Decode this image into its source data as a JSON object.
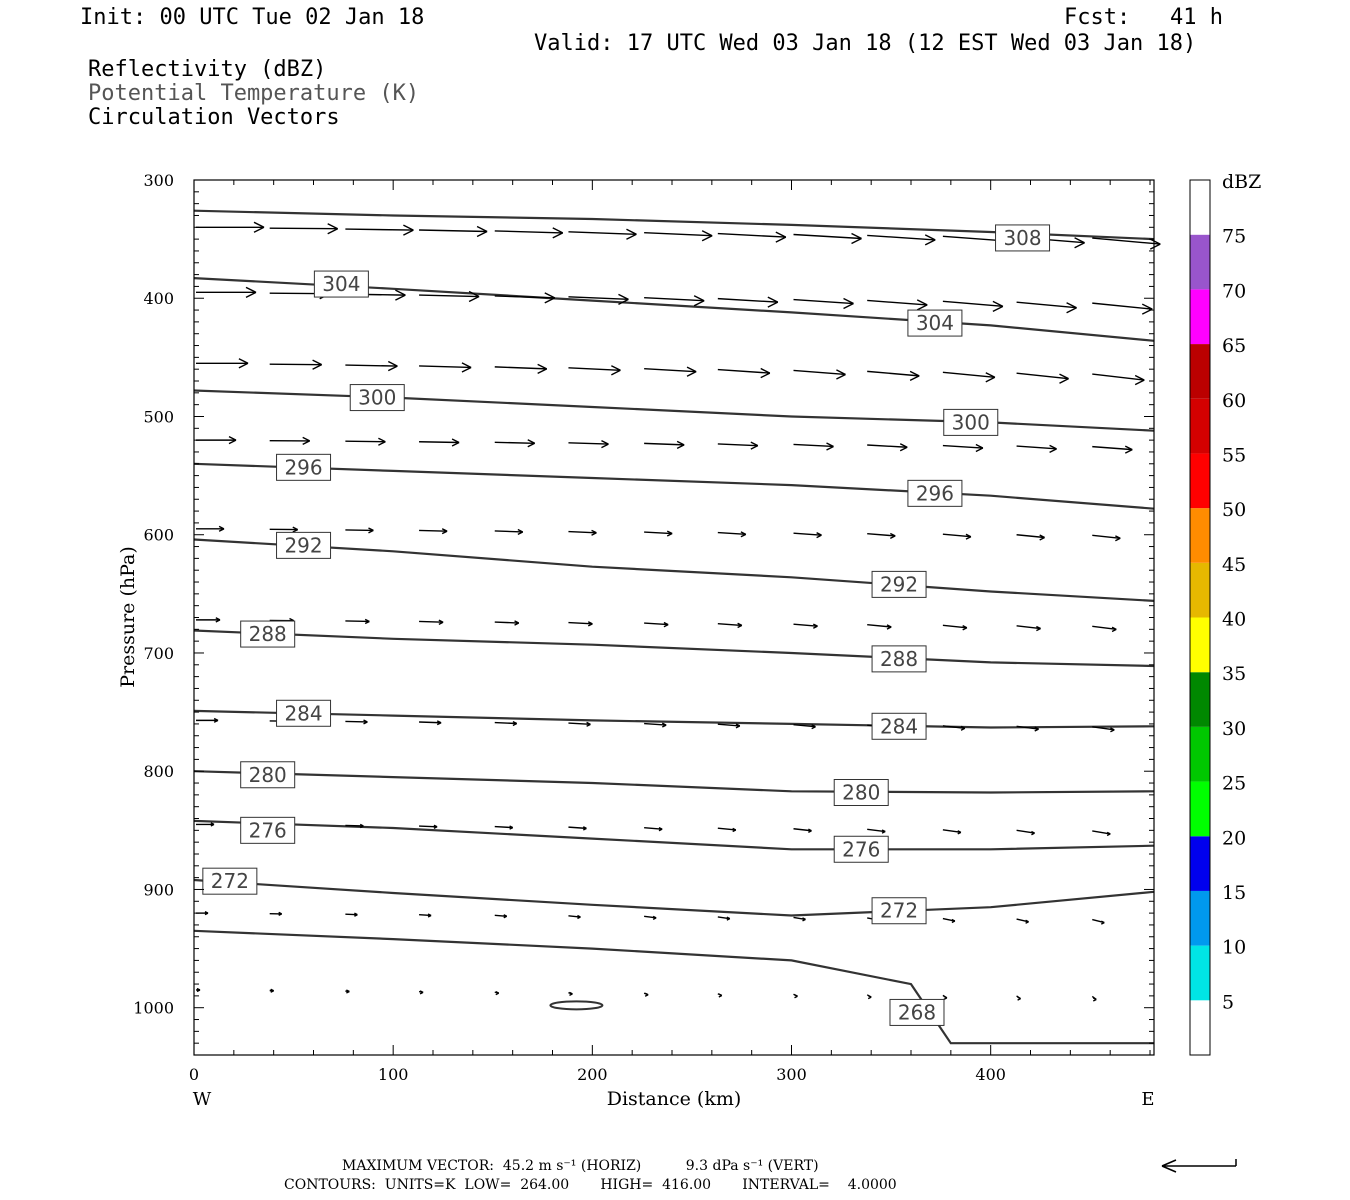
{
  "header": {
    "init": "Init: 00 UTC Tue 02 Jan 18",
    "fcst": "Fcst:   41 h",
    "valid": "Valid: 17 UTC Wed 03 Jan 18 (12 EST Wed 03 Jan 18)",
    "field1": "Reflectivity (dBZ)",
    "field2": "Potential Temperature (K)",
    "field3": "Circulation Vectors"
  },
  "footer": {
    "line1": "MAXIMUM VECTOR:  45.2 m s⁻¹ (HORIZ)          9.3 dPa s⁻¹ (VERT)",
    "line2": "CONTOURS:  UNITS=K  LOW=  264.00       HIGH=  416.00       INTERVAL=    4.0000"
  },
  "colors": {
    "contour": "#333333",
    "axis": "#000000"
  },
  "chart_data": {
    "type": "cross-section",
    "xlabel": "Distance (km)",
    "ylabel": "Pressure (hPa)",
    "xlim": [
      0,
      482
    ],
    "ylim": [
      300,
      1040
    ],
    "x_ticks": [
      "0",
      "100",
      "200",
      "300",
      "400"
    ],
    "x_tick_values": [
      0,
      100,
      200,
      300,
      400
    ],
    "y_ticks": [
      "300",
      "400",
      "500",
      "600",
      "700",
      "800",
      "900",
      "1000"
    ],
    "y_tick_values": [
      300,
      400,
      500,
      600,
      700,
      800,
      900,
      1000
    ],
    "left_end_label": "W",
    "right_end_label": "E",
    "colorbar": {
      "title": "dBZ",
      "labels": [
        "5",
        "10",
        "15",
        "20",
        "25",
        "30",
        "35",
        "40",
        "45",
        "50",
        "55",
        "60",
        "65",
        "70",
        "75"
      ],
      "colors": [
        "#ffffff",
        "#00e5e5",
        "#0099ee",
        "#0000ee",
        "#00ff00",
        "#00c800",
        "#008800",
        "#ffff00",
        "#e6b800",
        "#ff8c00",
        "#ff0000",
        "#d40000",
        "#bb0000",
        "#ff00ff",
        "#9955cc",
        "#ffffff"
      ]
    },
    "contours": [
      {
        "level": 308,
        "label": "308",
        "points": [
          [
            0,
            326
          ],
          [
            100,
            330
          ],
          [
            200,
            333
          ],
          [
            300,
            338
          ],
          [
            400,
            344
          ],
          [
            482,
            350
          ]
        ]
      },
      {
        "level": 304,
        "label": "304",
        "points": [
          [
            0,
            383
          ],
          [
            100,
            392
          ],
          [
            200,
            402
          ],
          [
            300,
            412
          ],
          [
            400,
            423
          ],
          [
            482,
            436
          ]
        ]
      },
      {
        "level": 300,
        "label": "300",
        "points": [
          [
            0,
            478
          ],
          [
            100,
            484
          ],
          [
            200,
            492
          ],
          [
            300,
            500
          ],
          [
            400,
            505
          ],
          [
            482,
            512
          ]
        ]
      },
      {
        "level": 296,
        "label": "296",
        "points": [
          [
            0,
            540
          ],
          [
            100,
            546
          ],
          [
            200,
            552
          ],
          [
            300,
            558
          ],
          [
            400,
            567
          ],
          [
            482,
            578
          ]
        ]
      },
      {
        "level": 292,
        "label": "292",
        "points": [
          [
            0,
            604
          ],
          [
            100,
            614
          ],
          [
            200,
            627
          ],
          [
            300,
            636
          ],
          [
            400,
            648
          ],
          [
            482,
            656
          ]
        ]
      },
      {
        "level": 288,
        "label": "288",
        "points": [
          [
            0,
            681
          ],
          [
            100,
            688
          ],
          [
            200,
            693
          ],
          [
            300,
            700
          ],
          [
            400,
            708
          ],
          [
            482,
            711
          ]
        ]
      },
      {
        "level": 284,
        "label": "284",
        "points": [
          [
            0,
            749
          ],
          [
            100,
            753
          ],
          [
            200,
            757
          ],
          [
            300,
            760
          ],
          [
            400,
            763
          ],
          [
            482,
            762
          ]
        ]
      },
      {
        "level": 280,
        "label": "280",
        "points": [
          [
            0,
            800
          ],
          [
            100,
            805
          ],
          [
            200,
            810
          ],
          [
            300,
            817
          ],
          [
            400,
            818
          ],
          [
            482,
            817
          ]
        ]
      },
      {
        "level": 276,
        "label": "276",
        "points": [
          [
            0,
            842
          ],
          [
            100,
            848
          ],
          [
            200,
            857
          ],
          [
            300,
            866
          ],
          [
            400,
            866
          ],
          [
            482,
            863
          ]
        ]
      },
      {
        "level": 272,
        "label": "272",
        "points": [
          [
            0,
            892
          ],
          [
            100,
            903
          ],
          [
            200,
            913
          ],
          [
            300,
            922
          ],
          [
            400,
            915
          ],
          [
            482,
            902
          ]
        ]
      },
      {
        "level": 268,
        "label": "268",
        "points": [
          [
            0,
            935
          ],
          [
            100,
            942
          ],
          [
            200,
            950
          ],
          [
            300,
            960
          ],
          [
            360,
            980
          ],
          [
            380,
            1030
          ],
          [
            482,
            1030
          ]
        ]
      }
    ],
    "contour_labels": [
      {
        "text": "308",
        "x": 416,
        "p": 349
      },
      {
        "text": "304",
        "x": 74,
        "p": 388
      },
      {
        "text": "304",
        "x": 372,
        "p": 421
      },
      {
        "text": "300",
        "x": 92,
        "p": 484
      },
      {
        "text": "300",
        "x": 390,
        "p": 505
      },
      {
        "text": "296",
        "x": 55,
        "p": 543
      },
      {
        "text": "296",
        "x": 372,
        "p": 565
      },
      {
        "text": "292",
        "x": 55,
        "p": 609
      },
      {
        "text": "292",
        "x": 354,
        "p": 642
      },
      {
        "text": "288",
        "x": 37,
        "p": 684
      },
      {
        "text": "288",
        "x": 354,
        "p": 705
      },
      {
        "text": "284",
        "x": 55,
        "p": 751
      },
      {
        "text": "284",
        "x": 354,
        "p": 762
      },
      {
        "text": "280",
        "x": 37,
        "p": 803
      },
      {
        "text": "280",
        "x": 335,
        "p": 818
      },
      {
        "text": "276",
        "x": 37,
        "p": 850
      },
      {
        "text": "276",
        "x": 335,
        "p": 866
      },
      {
        "text": "272",
        "x": 18,
        "p": 893
      },
      {
        "text": "272",
        "x": 354,
        "p": 918
      },
      {
        "text": "268",
        "x": 363,
        "p": 1004
      }
    ],
    "vector_rows": [
      {
        "p": 340,
        "dx": 34
      },
      {
        "p": 395,
        "dx": 30
      },
      {
        "p": 455,
        "dx": 26
      },
      {
        "p": 520,
        "dx": 20
      },
      {
        "p": 595,
        "dx": 14
      },
      {
        "p": 672,
        "dx": 12
      },
      {
        "p": 757,
        "dx": 11
      },
      {
        "p": 845,
        "dx": 9
      },
      {
        "p": 920,
        "dx": 6
      },
      {
        "p": 985,
        "dx": 2
      }
    ]
  }
}
